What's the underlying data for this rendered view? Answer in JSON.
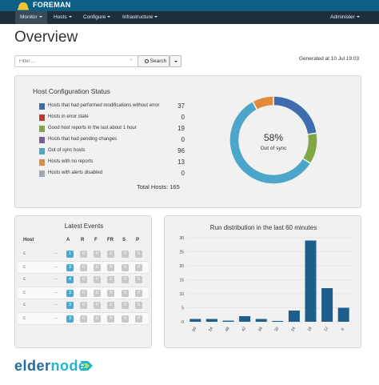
{
  "brand": {
    "name": "FOREMAN"
  },
  "nav": {
    "items": [
      {
        "label": "Monitor",
        "active": true
      },
      {
        "label": "Hosts"
      },
      {
        "label": "Configure"
      },
      {
        "label": "Infrastructure"
      }
    ],
    "right_item": {
      "label": "Administer"
    }
  },
  "page": {
    "title": "Overview"
  },
  "filter": {
    "placeholder": "Filter ...",
    "clear": "×",
    "search_label": "Search"
  },
  "generated": "Generated at 10 Jul 19:03",
  "host_config": {
    "title": "Host Configuration Status",
    "rows": [
      {
        "label": "Hosts that had performed modifications without error",
        "count": "37",
        "color": "#3f6cae"
      },
      {
        "label": "Hosts in error state",
        "count": "0",
        "color": "#c0392b"
      },
      {
        "label": "Good host reports in the last about 1 hour",
        "count": "19",
        "color": "#7fa845"
      },
      {
        "label": "Hosts that had pending changes",
        "count": "0",
        "color": "#7a5ea3"
      },
      {
        "label": "Out of sync hosts",
        "count": "96",
        "color": "#4ba6c9"
      },
      {
        "label": "Hosts with no reports",
        "count": "13",
        "color": "#e38a3b"
      },
      {
        "label": "Hosts with alerts disabled",
        "count": "0",
        "color": "#9da8b3"
      }
    ],
    "total": "Total Hosts: 165",
    "donut_pct": "58%",
    "donut_sub": "Out of sync"
  },
  "latest_events": {
    "title": "Latest Events",
    "headers": [
      "Host",
      "A",
      "R",
      "F",
      "FR",
      "S",
      "P"
    ],
    "rows": [
      {
        "host": "c",
        "dots": "...",
        "a": "1",
        "r": "0",
        "f": "0",
        "fr": "0",
        "s": "0",
        "p": "0"
      },
      {
        "host": "c",
        "dots": "...",
        "a": "3",
        "r": "0",
        "f": "0",
        "fr": "0",
        "s": "0",
        "p": "0"
      },
      {
        "host": "c",
        "dots": "...",
        "a": "4",
        "r": "0",
        "f": "0",
        "fr": "0",
        "s": "0",
        "p": "0"
      },
      {
        "host": "c",
        "dots": "...",
        "a": "3",
        "r": "0",
        "f": "0",
        "fr": "0",
        "s": "0",
        "p": "0"
      },
      {
        "host": "c",
        "dots": "...",
        "a": "3",
        "r": "0",
        "f": "0",
        "fr": "0",
        "s": "0",
        "p": "0"
      },
      {
        "host": "c",
        "dots": "...",
        "a": "3",
        "r": "0",
        "f": "0",
        "fr": "0",
        "s": "0",
        "p": "0"
      }
    ]
  },
  "chart_data": [
    {
      "type": "pie",
      "title": "Host Configuration Status",
      "categories": [
        "Hosts that had performed modifications without error",
        "Hosts in error state",
        "Good host reports in the last about 1 hour",
        "Hosts that had pending changes",
        "Out of sync hosts",
        "Hosts with no reports",
        "Hosts with alerts disabled"
      ],
      "values": [
        37,
        0,
        19,
        0,
        96,
        13,
        0
      ],
      "colors": [
        "#3f6cae",
        "#c0392b",
        "#7fa845",
        "#7a5ea3",
        "#4ba6c9",
        "#e38a3b",
        "#9da8b3"
      ],
      "style": "donut"
    },
    {
      "type": "bar",
      "title": "Run distribution in the last 60 minutes",
      "categories": [
        "60",
        "54",
        "48",
        "42",
        "36",
        "30",
        "24",
        "18",
        "12",
        "6"
      ],
      "values": [
        1,
        1,
        0.4,
        2,
        1,
        0.3,
        4,
        29,
        12,
        5
      ],
      "ylim": [
        0,
        30
      ],
      "yticks": [
        "0",
        "5",
        "10",
        "15",
        "20",
        "25",
        "30"
      ],
      "grid": true,
      "color": "#1d5f8a"
    }
  ],
  "watermark": {
    "text_a": "elder",
    "text_b": "node",
    "color_a": "#1d6e9e",
    "color_b": "#22b5c9"
  }
}
